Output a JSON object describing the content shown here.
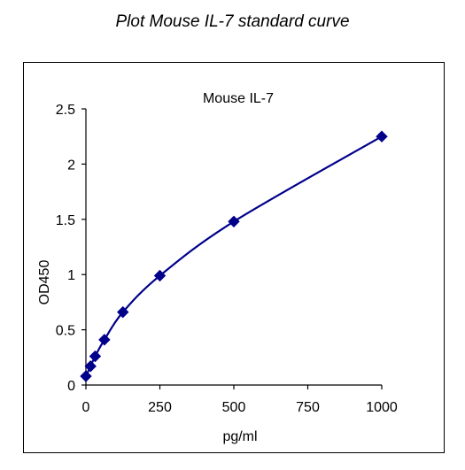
{
  "page": {
    "title": "Plot Mouse IL-7 standard curve"
  },
  "chart_data": {
    "type": "scatter",
    "title": "Mouse IL-7",
    "xlabel": "pg/ml",
    "ylabel": "OD450",
    "xlim": [
      0,
      1000
    ],
    "ylim": [
      0,
      2.5
    ],
    "x_ticks": [
      0,
      250,
      500,
      750,
      1000
    ],
    "x_tick_labels": [
      "0",
      "250",
      "500",
      "750",
      "1000"
    ],
    "y_ticks": [
      0,
      0.5,
      1,
      1.5,
      2,
      2.5
    ],
    "y_tick_labels": [
      "0",
      "0.5",
      "1",
      "1.5",
      "2",
      "2.5"
    ],
    "grid": false,
    "legend": false,
    "series": [
      {
        "x": [
          0,
          15.6,
          31.25,
          62.5,
          125,
          250,
          500,
          1000
        ],
        "y": [
          0.08,
          0.17,
          0.26,
          0.41,
          0.66,
          0.99,
          1.48,
          2.25
        ],
        "marker": "diamond",
        "color": "#00008B",
        "fit_line": true
      }
    ]
  }
}
